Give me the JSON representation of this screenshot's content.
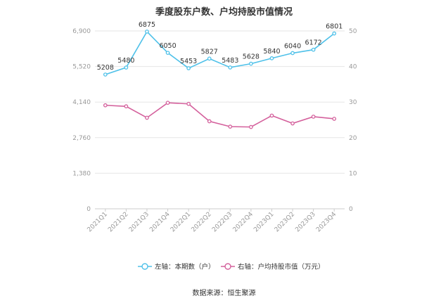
{
  "chart_data": {
    "type": "line",
    "title": "季度股东户数、户均持股市值情况",
    "categories": [
      "2021Q1",
      "2021Q2",
      "2021Q3",
      "2021Q4",
      "2022Q1",
      "2022Q2",
      "2022Q3",
      "2022Q4",
      "2023Q1",
      "2023Q2",
      "2023Q3",
      "2023Q4"
    ],
    "left_axis": {
      "ticks": [
        "0",
        "1,380",
        "2,760",
        "4,140",
        "5,520",
        "6,900"
      ],
      "ylim": [
        0,
        6900
      ]
    },
    "right_axis": {
      "ticks": [
        "0",
        "10",
        "20",
        "30",
        "40",
        "50"
      ],
      "ylim": [
        0,
        50
      ]
    },
    "series": [
      {
        "name": "左轴：本期数（户）",
        "axis": "left",
        "color": "#4fc1e9",
        "values": [
          5208,
          5480,
          6875,
          6050,
          5453,
          5827,
          5483,
          5628,
          5840,
          6040,
          6172,
          6801
        ],
        "labels": [
          "5208",
          "5480",
          "6875",
          "6050",
          "5453",
          "5827",
          "5483",
          "5628",
          "5840",
          "6040",
          "6172",
          "6801"
        ]
      },
      {
        "name": "右轴：户均持股市值（万元）",
        "axis": "right",
        "color": "#d4609c",
        "values": [
          29.1,
          28.8,
          25.6,
          29.8,
          29.5,
          24.6,
          23.1,
          23.0,
          26.2,
          24.0,
          25.9,
          25.3
        ]
      }
    ],
    "grid": true
  },
  "source": "数据来源：恒生聚源"
}
